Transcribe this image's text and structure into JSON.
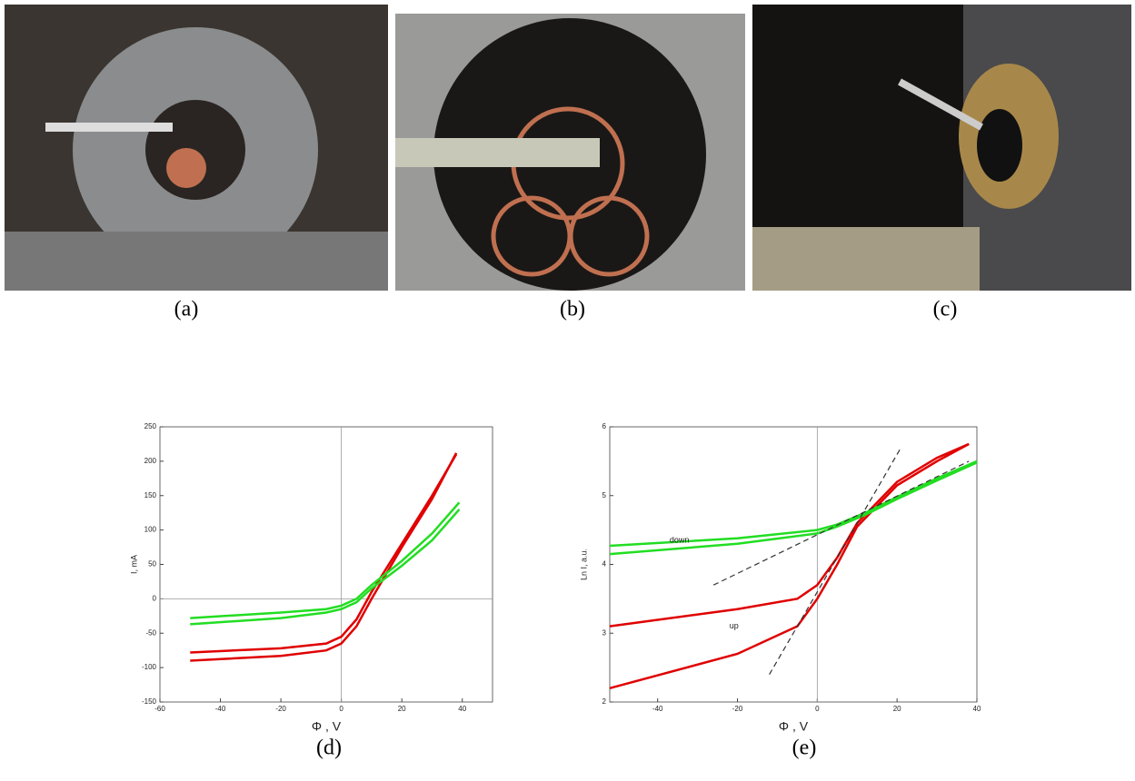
{
  "photos": [
    {
      "caption": "(a)"
    },
    {
      "caption": "(b)"
    },
    {
      "caption": "(c)"
    }
  ],
  "chart_data": [
    {
      "type": "line",
      "caption": "(d)",
      "x_label": "Φ , V",
      "y_label": "I,  mA",
      "xlim": [
        -60,
        50
      ],
      "xticks": [
        -60,
        -40,
        -20,
        0,
        20,
        40
      ],
      "ylim": [
        -150,
        250
      ],
      "yticks": [
        -150,
        -100,
        -50,
        0,
        50,
        100,
        150,
        200,
        250
      ],
      "zero_lines": [
        "x",
        "y"
      ],
      "series": [
        {
          "color": "#e00000",
          "x": [
            -50,
            -20,
            -5,
            0,
            5,
            10,
            20,
            30,
            38
          ],
          "values": [
            -78,
            -72,
            -65,
            -55,
            -30,
            10,
            80,
            150,
            210
          ]
        },
        {
          "color": "#e00000",
          "x": [
            -50,
            -20,
            -5,
            0,
            5,
            10,
            20,
            30,
            38
          ],
          "values": [
            -90,
            -83,
            -75,
            -65,
            -40,
            0,
            75,
            145,
            212
          ]
        },
        {
          "color": "#22dd22",
          "x": [
            -50,
            -20,
            -5,
            0,
            5,
            10,
            20,
            30,
            39
          ],
          "values": [
            -28,
            -20,
            -15,
            -10,
            0,
            20,
            55,
            95,
            140
          ]
        },
        {
          "color": "#22dd22",
          "x": [
            -50,
            -20,
            -5,
            0,
            5,
            10,
            20,
            30,
            39
          ],
          "values": [
            -37,
            -28,
            -20,
            -15,
            -5,
            15,
            48,
            85,
            130
          ]
        }
      ]
    },
    {
      "type": "line",
      "caption": "(e)",
      "x_label": "Φ , V",
      "y_label": "Ln I,  a.u.",
      "xlim": [
        -52,
        40
      ],
      "xticks": [
        -40,
        -20,
        0,
        20,
        40
      ],
      "ylim": [
        2,
        6
      ],
      "yticks": [
        2,
        3,
        4,
        5,
        6
      ],
      "zero_lines": [
        "x"
      ],
      "series": [
        {
          "color": "#e00000",
          "x": [
            -52,
            -20,
            -5,
            0,
            5,
            10,
            20,
            30,
            38
          ],
          "values": [
            3.1,
            3.35,
            3.5,
            3.7,
            4.1,
            4.6,
            5.2,
            5.55,
            5.75
          ]
        },
        {
          "color": "#e00000",
          "x": [
            -52,
            -20,
            -5,
            0,
            5,
            10,
            20,
            30,
            38
          ],
          "values": [
            2.2,
            2.7,
            3.1,
            3.5,
            4.0,
            4.55,
            5.15,
            5.5,
            5.75
          ]
        },
        {
          "color": "#22dd22",
          "x": [
            -52,
            -20,
            0,
            5,
            12,
            20,
            30,
            40
          ],
          "values": [
            4.27,
            4.38,
            4.5,
            4.58,
            4.75,
            4.98,
            5.25,
            5.5
          ]
        },
        {
          "color": "#22dd22",
          "x": [
            -52,
            -20,
            0,
            5,
            12,
            20,
            30,
            40
          ],
          "values": [
            4.15,
            4.3,
            4.45,
            4.55,
            4.72,
            4.95,
            5.22,
            5.48
          ]
        },
        {
          "color": "#333333",
          "dash": true,
          "x": [
            -26,
            38
          ],
          "values": [
            3.7,
            5.5
          ]
        },
        {
          "color": "#333333",
          "dash": true,
          "x": [
            -12,
            21
          ],
          "values": [
            2.4,
            5.7
          ]
        }
      ],
      "annotations": [
        {
          "text": "down",
          "x": -37,
          "y": 4.35,
          "color": "#22aa22"
        },
        {
          "text": "up",
          "x": -22,
          "y": 3.1,
          "color": "#cc0088"
        }
      ]
    }
  ]
}
